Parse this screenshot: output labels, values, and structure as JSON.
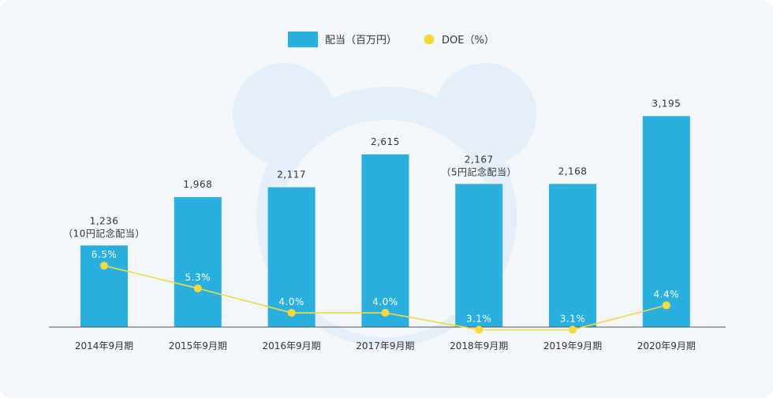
{
  "chart_data": {
    "type": "bar",
    "categories": [
      "2014年9月期",
      "2015年9月期",
      "2016年9月期",
      "2017年9月期",
      "2018年9月期",
      "2019年9月期",
      "2020年9月期"
    ],
    "series": [
      {
        "name": "配当（百万円）",
        "kind": "bar",
        "color": "#29b0df",
        "values": [
          1236,
          1968,
          2117,
          2615,
          2167,
          2168,
          3195
        ],
        "value_labels": [
          "1,236",
          "1,968",
          "2,117",
          "2,615",
          "2,167",
          "2,168",
          "3,195"
        ],
        "notes": [
          "（10円記念配当）",
          "",
          "",
          "",
          "（5円記念配当）",
          "",
          ""
        ]
      },
      {
        "name": "DOE（%）",
        "kind": "line",
        "color": "#f7d93a",
        "values": [
          6.5,
          5.3,
          4.0,
          4.0,
          3.1,
          3.1,
          4.4
        ],
        "value_labels": [
          "6.5%",
          "5.3%",
          "4.0%",
          "4.0%",
          "3.1%",
          "3.1%",
          "4.4%"
        ]
      }
    ],
    "legend_position": "top-center",
    "grid": false
  },
  "colors": {
    "background": "#f3f7fc",
    "watermark": "#e3eef9",
    "axis": "#555555"
  }
}
